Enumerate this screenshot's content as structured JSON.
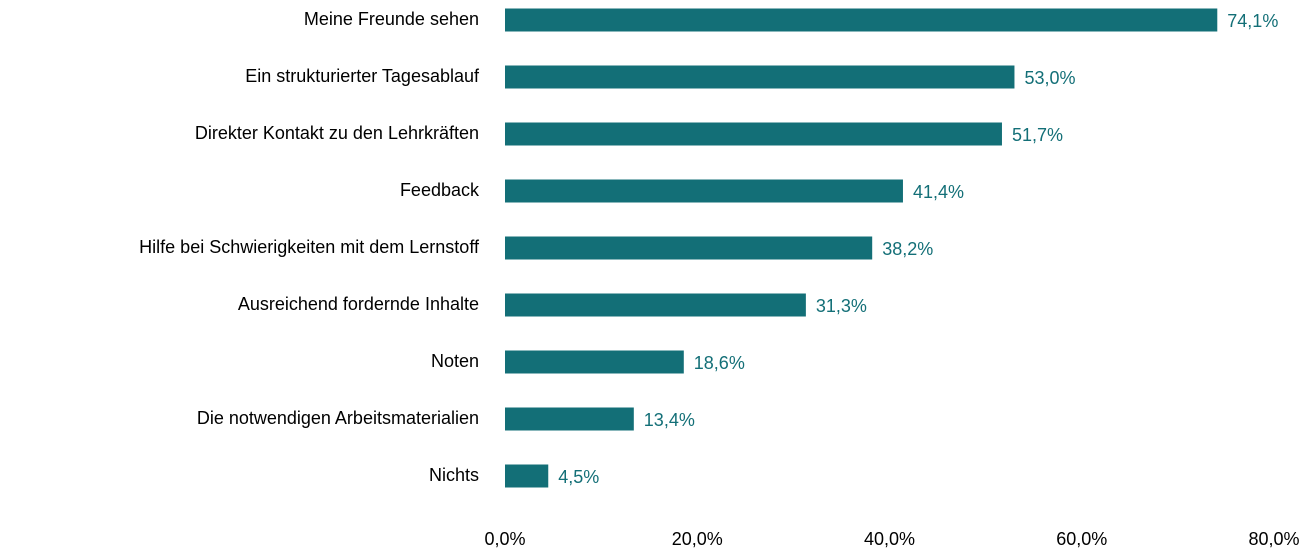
{
  "chart_data": {
    "type": "bar",
    "orientation": "horizontal",
    "categories": [
      "Meine Freunde sehen",
      "Ein strukturierter Tagesablauf",
      "Direkter Kontakt zu den Lehrkräften",
      "Feedback",
      "Hilfe bei Schwierigkeiten mit dem Lernstoff",
      "Ausreichend fordernde Inhalte",
      "Noten",
      "Die notwendigen Arbeitsmaterialien",
      "Nichts"
    ],
    "values": [
      74.1,
      53.0,
      51.7,
      41.4,
      38.2,
      31.3,
      18.6,
      13.4,
      4.5
    ],
    "value_labels": [
      "74,1%",
      "53,0%",
      "51,7%",
      "41,4%",
      "38,2%",
      "31,3%",
      "18,6%",
      "13,4%",
      "4,5%"
    ],
    "color": "#136f77",
    "xlim": [
      0,
      80
    ],
    "xticks": [
      {
        "value": 0,
        "label": "0,0%"
      },
      {
        "value": 20,
        "label": "20,0%"
      },
      {
        "value": 40,
        "label": "40,0%"
      },
      {
        "value": 60,
        "label": "60,0%"
      },
      {
        "value": 80,
        "label": "80,0%"
      }
    ],
    "grid": false
  }
}
